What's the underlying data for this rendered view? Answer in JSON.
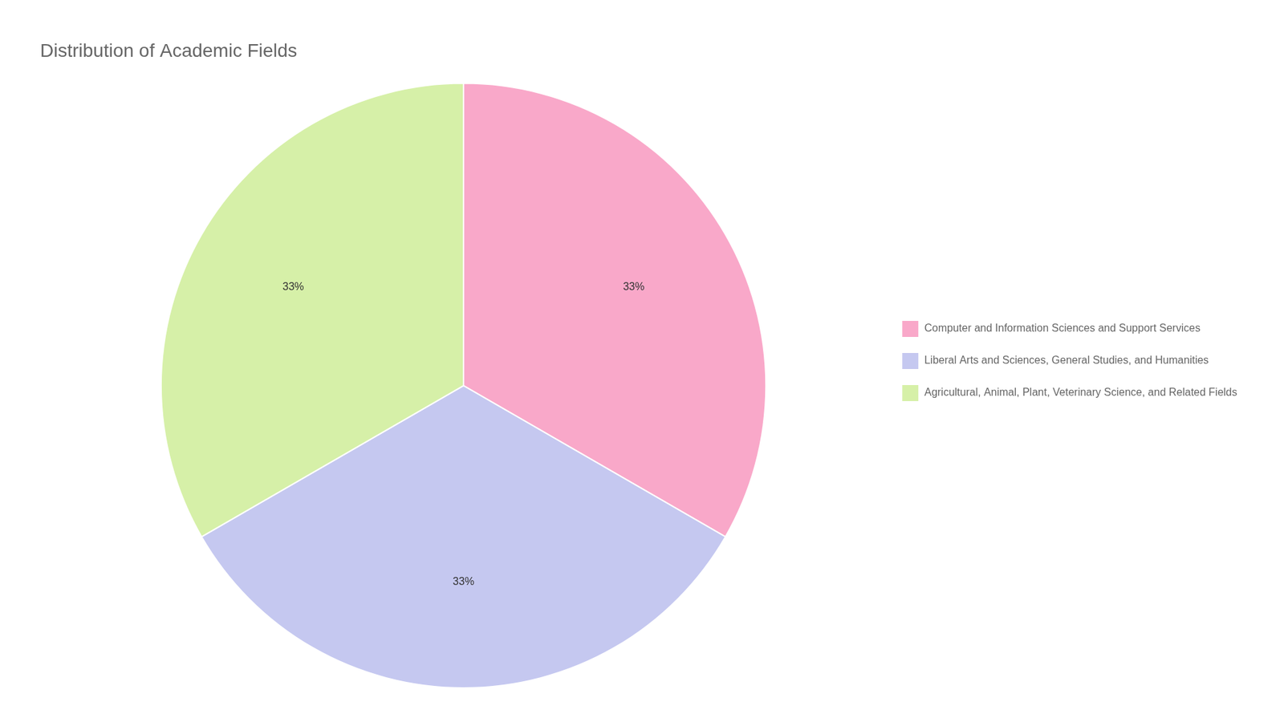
{
  "chart_data": {
    "type": "pie",
    "title": "Distribution of Academic Fields",
    "categories": [
      "Computer and Information Sciences and Support Services",
      "Liberal Arts and Sciences, General Studies, and Humanities",
      "Agricultural, Animal, Plant, Veterinary Science, and Related Fields"
    ],
    "values": [
      33,
      33,
      33
    ],
    "value_labels": [
      "33%",
      "33%",
      "33%"
    ],
    "colors": [
      "#f9a8c9",
      "#c5c8f0",
      "#d6f0a8"
    ],
    "data_labels": true,
    "legend": "right"
  }
}
